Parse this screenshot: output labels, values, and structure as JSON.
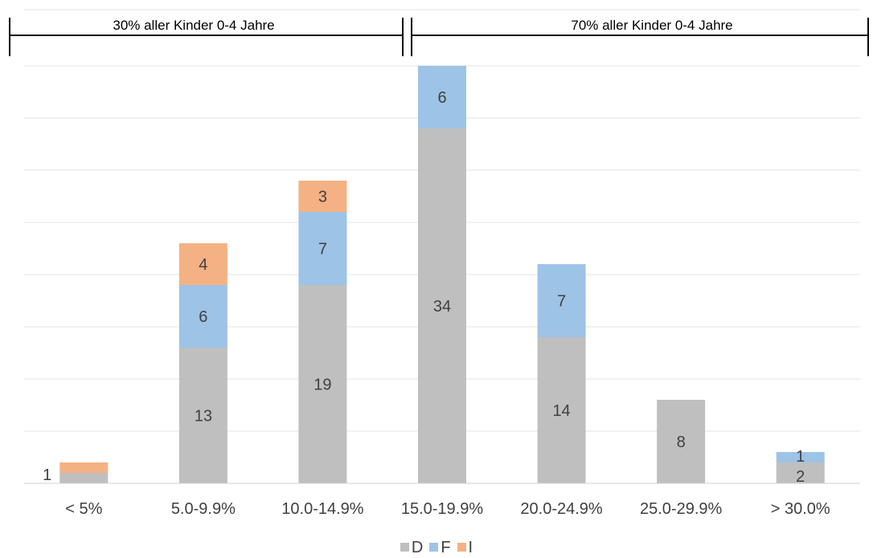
{
  "chart_data": {
    "type": "bar",
    "stacked": true,
    "categories": [
      "< 5%",
      "5.0-9.9%",
      "10.0-14.9%",
      "15.0-19.9%",
      "20.0-24.9%",
      "25.0-29.9%",
      "> 30.0%"
    ],
    "series": [
      {
        "name": "D",
        "color": "#bfbfbf",
        "values": [
          1,
          13,
          19,
          34,
          14,
          8,
          2
        ]
      },
      {
        "name": "F",
        "color": "#9dc3e6",
        "values": [
          0,
          6,
          7,
          6,
          7,
          0,
          1
        ]
      },
      {
        "name": "I",
        "color": "#f4b183",
        "values": [
          1,
          4,
          3,
          0,
          0,
          0,
          0
        ]
      }
    ],
    "ylim": [
      0,
      40
    ],
    "grid": true,
    "legend": "bottom",
    "data_labels": {
      "D": [
        "1",
        "13",
        "19",
        "34",
        "14",
        "8",
        "2"
      ],
      "F": [
        "",
        "6",
        "7",
        "6",
        "7",
        "",
        "1"
      ],
      "I": [
        "",
        "4",
        "3",
        "",
        "",
        "",
        ""
      ]
    },
    "brackets": [
      {
        "label": "30% aller Kinder 0-4 Jahre",
        "from_category": 0,
        "to_category": 2
      },
      {
        "label": "70% aller Kinder 0-4 Jahre",
        "from_category": 3,
        "to_category": 6
      }
    ]
  }
}
